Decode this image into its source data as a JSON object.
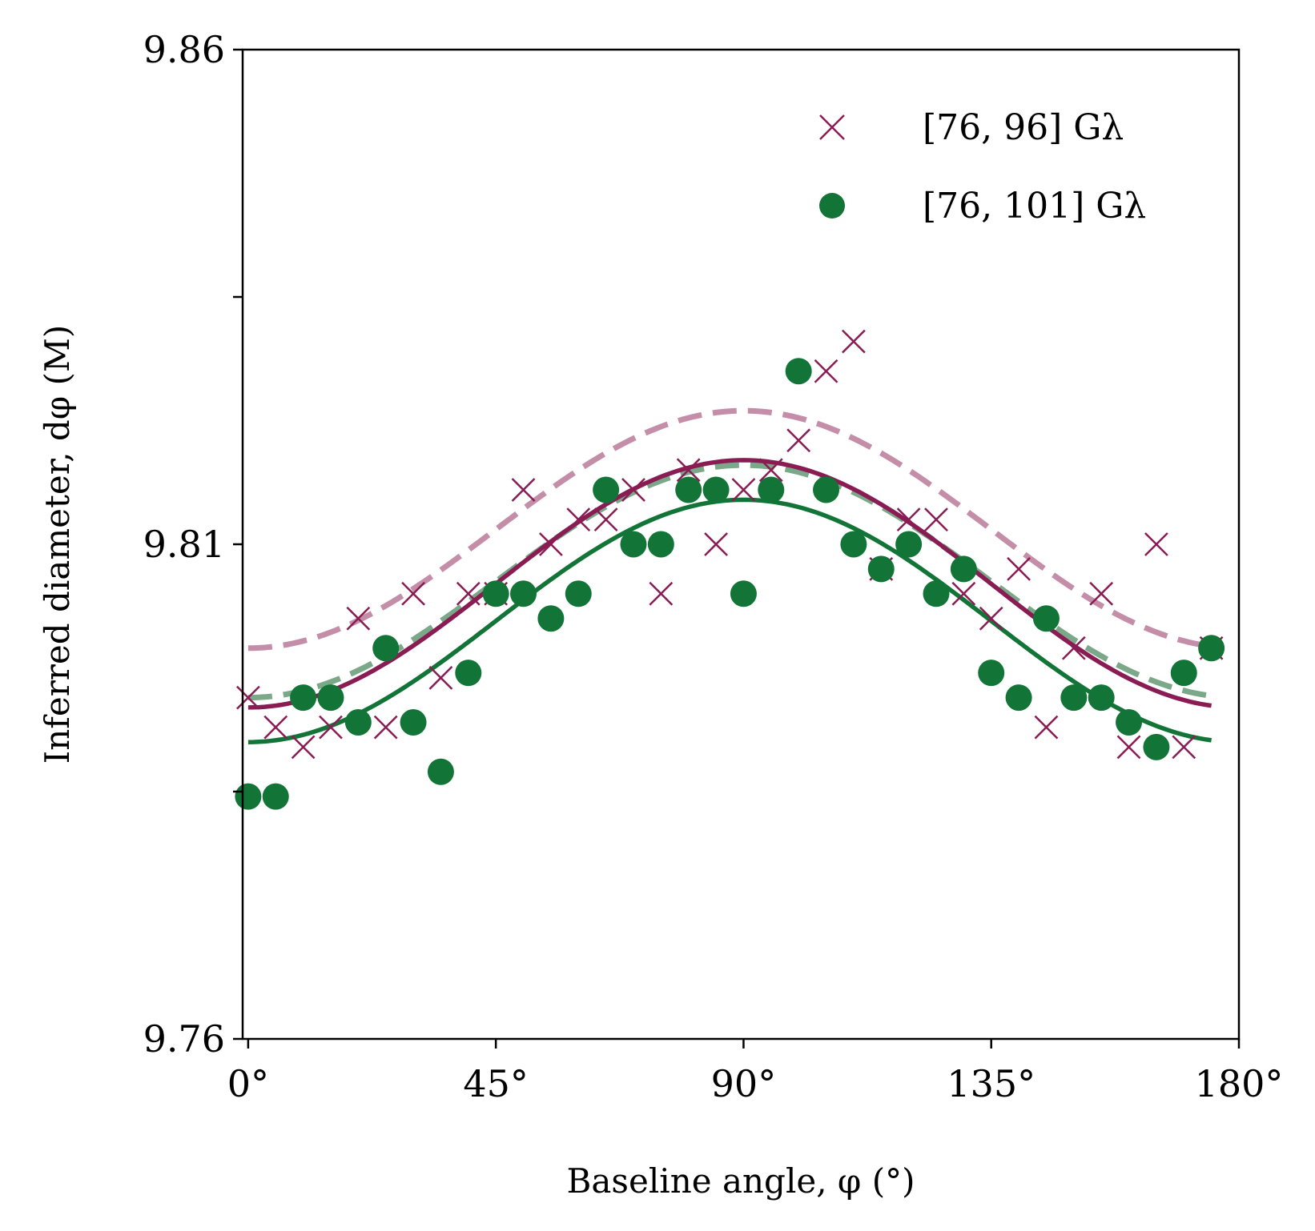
{
  "chart_data": {
    "type": "scatter",
    "title": "",
    "xlabel": "Baseline angle, φ (°)",
    "ylabel": "Inferred diameter, dφ (M)",
    "xlim": [
      -1,
      180
    ],
    "ylim": [
      9.76,
      9.86
    ],
    "x_ticks": [
      0,
      45,
      90,
      135,
      180
    ],
    "x_tick_labels": [
      "0°",
      "45°",
      "90°",
      "135°",
      "180°"
    ],
    "y_ticks": [
      9.76,
      9.785,
      9.81,
      9.835,
      9.86
    ],
    "y_tick_labels": [
      "9.76",
      "",
      "9.81",
      "",
      "9.86"
    ],
    "grid": false,
    "legend_position": "top-right",
    "colors": {
      "maroon": "#8a1c54",
      "green": "#127537",
      "maroon_light": "#c48ea8",
      "green_light": "#7aa888"
    },
    "series": [
      {
        "name": "[76, 96] Gλ",
        "marker": "x",
        "color": "#8a1c54",
        "x": [
          0,
          5,
          10,
          15,
          20,
          25,
          30,
          35,
          40,
          45,
          50,
          55,
          60,
          65,
          70,
          75,
          80,
          85,
          90,
          95,
          100,
          105,
          110,
          115,
          120,
          125,
          130,
          135,
          140,
          145,
          150,
          155,
          160,
          165,
          170,
          175
        ],
        "y": [
          9.7945,
          9.7915,
          9.7895,
          9.7915,
          9.8025,
          9.7915,
          9.805,
          9.7965,
          9.805,
          9.805,
          9.8155,
          9.81,
          9.8125,
          9.8125,
          9.8155,
          9.805,
          9.8175,
          9.81,
          9.8155,
          9.8175,
          9.8205,
          9.8275,
          9.8305,
          9.8075,
          9.8125,
          9.8125,
          9.805,
          9.8025,
          9.8075,
          9.7915,
          9.7995,
          9.805,
          9.7895,
          9.81,
          9.7895,
          9.7995
        ]
      },
      {
        "name": "[76, 101] Gλ",
        "marker": "o",
        "color": "#127537",
        "x": [
          0,
          5,
          10,
          15,
          20,
          25,
          30,
          35,
          40,
          45,
          50,
          55,
          60,
          65,
          70,
          75,
          80,
          85,
          90,
          95,
          100,
          105,
          110,
          115,
          120,
          125,
          130,
          135,
          140,
          145,
          150,
          155,
          160,
          165,
          170,
          175
        ],
        "y": [
          9.7845,
          9.7845,
          9.7945,
          9.7945,
          9.792,
          9.7995,
          9.792,
          9.787,
          9.797,
          9.805,
          9.805,
          9.8025,
          9.805,
          9.8155,
          9.81,
          9.81,
          9.8155,
          9.8155,
          9.805,
          9.8155,
          9.8275,
          9.8155,
          9.81,
          9.8075,
          9.81,
          9.805,
          9.8075,
          9.797,
          9.7945,
          9.8025,
          9.7945,
          9.7945,
          9.792,
          9.7895,
          9.797,
          9.7995
        ]
      }
    ],
    "fits": [
      {
        "name": "fit [76, 96] Gλ",
        "color": "#8a1c54",
        "style": "solid",
        "amplitude": 0.0095,
        "mean": 9.8085,
        "min_value": 9.7935,
        "max_value": 9.8185
      },
      {
        "name": "fit [76, 101] Gλ",
        "color": "#127537",
        "style": "solid",
        "min_value": 9.79,
        "max_value": 9.8145
      },
      {
        "name": "upper bound [76, 96] Gλ",
        "color": "#c48ea8",
        "style": "dashed",
        "min_value": 9.7995,
        "max_value": 9.8235
      },
      {
        "name": "bound [76, 101] Gλ",
        "color": "#7aa888",
        "style": "dashed",
        "min_value": 9.7945,
        "max_value": 9.818
      }
    ]
  }
}
